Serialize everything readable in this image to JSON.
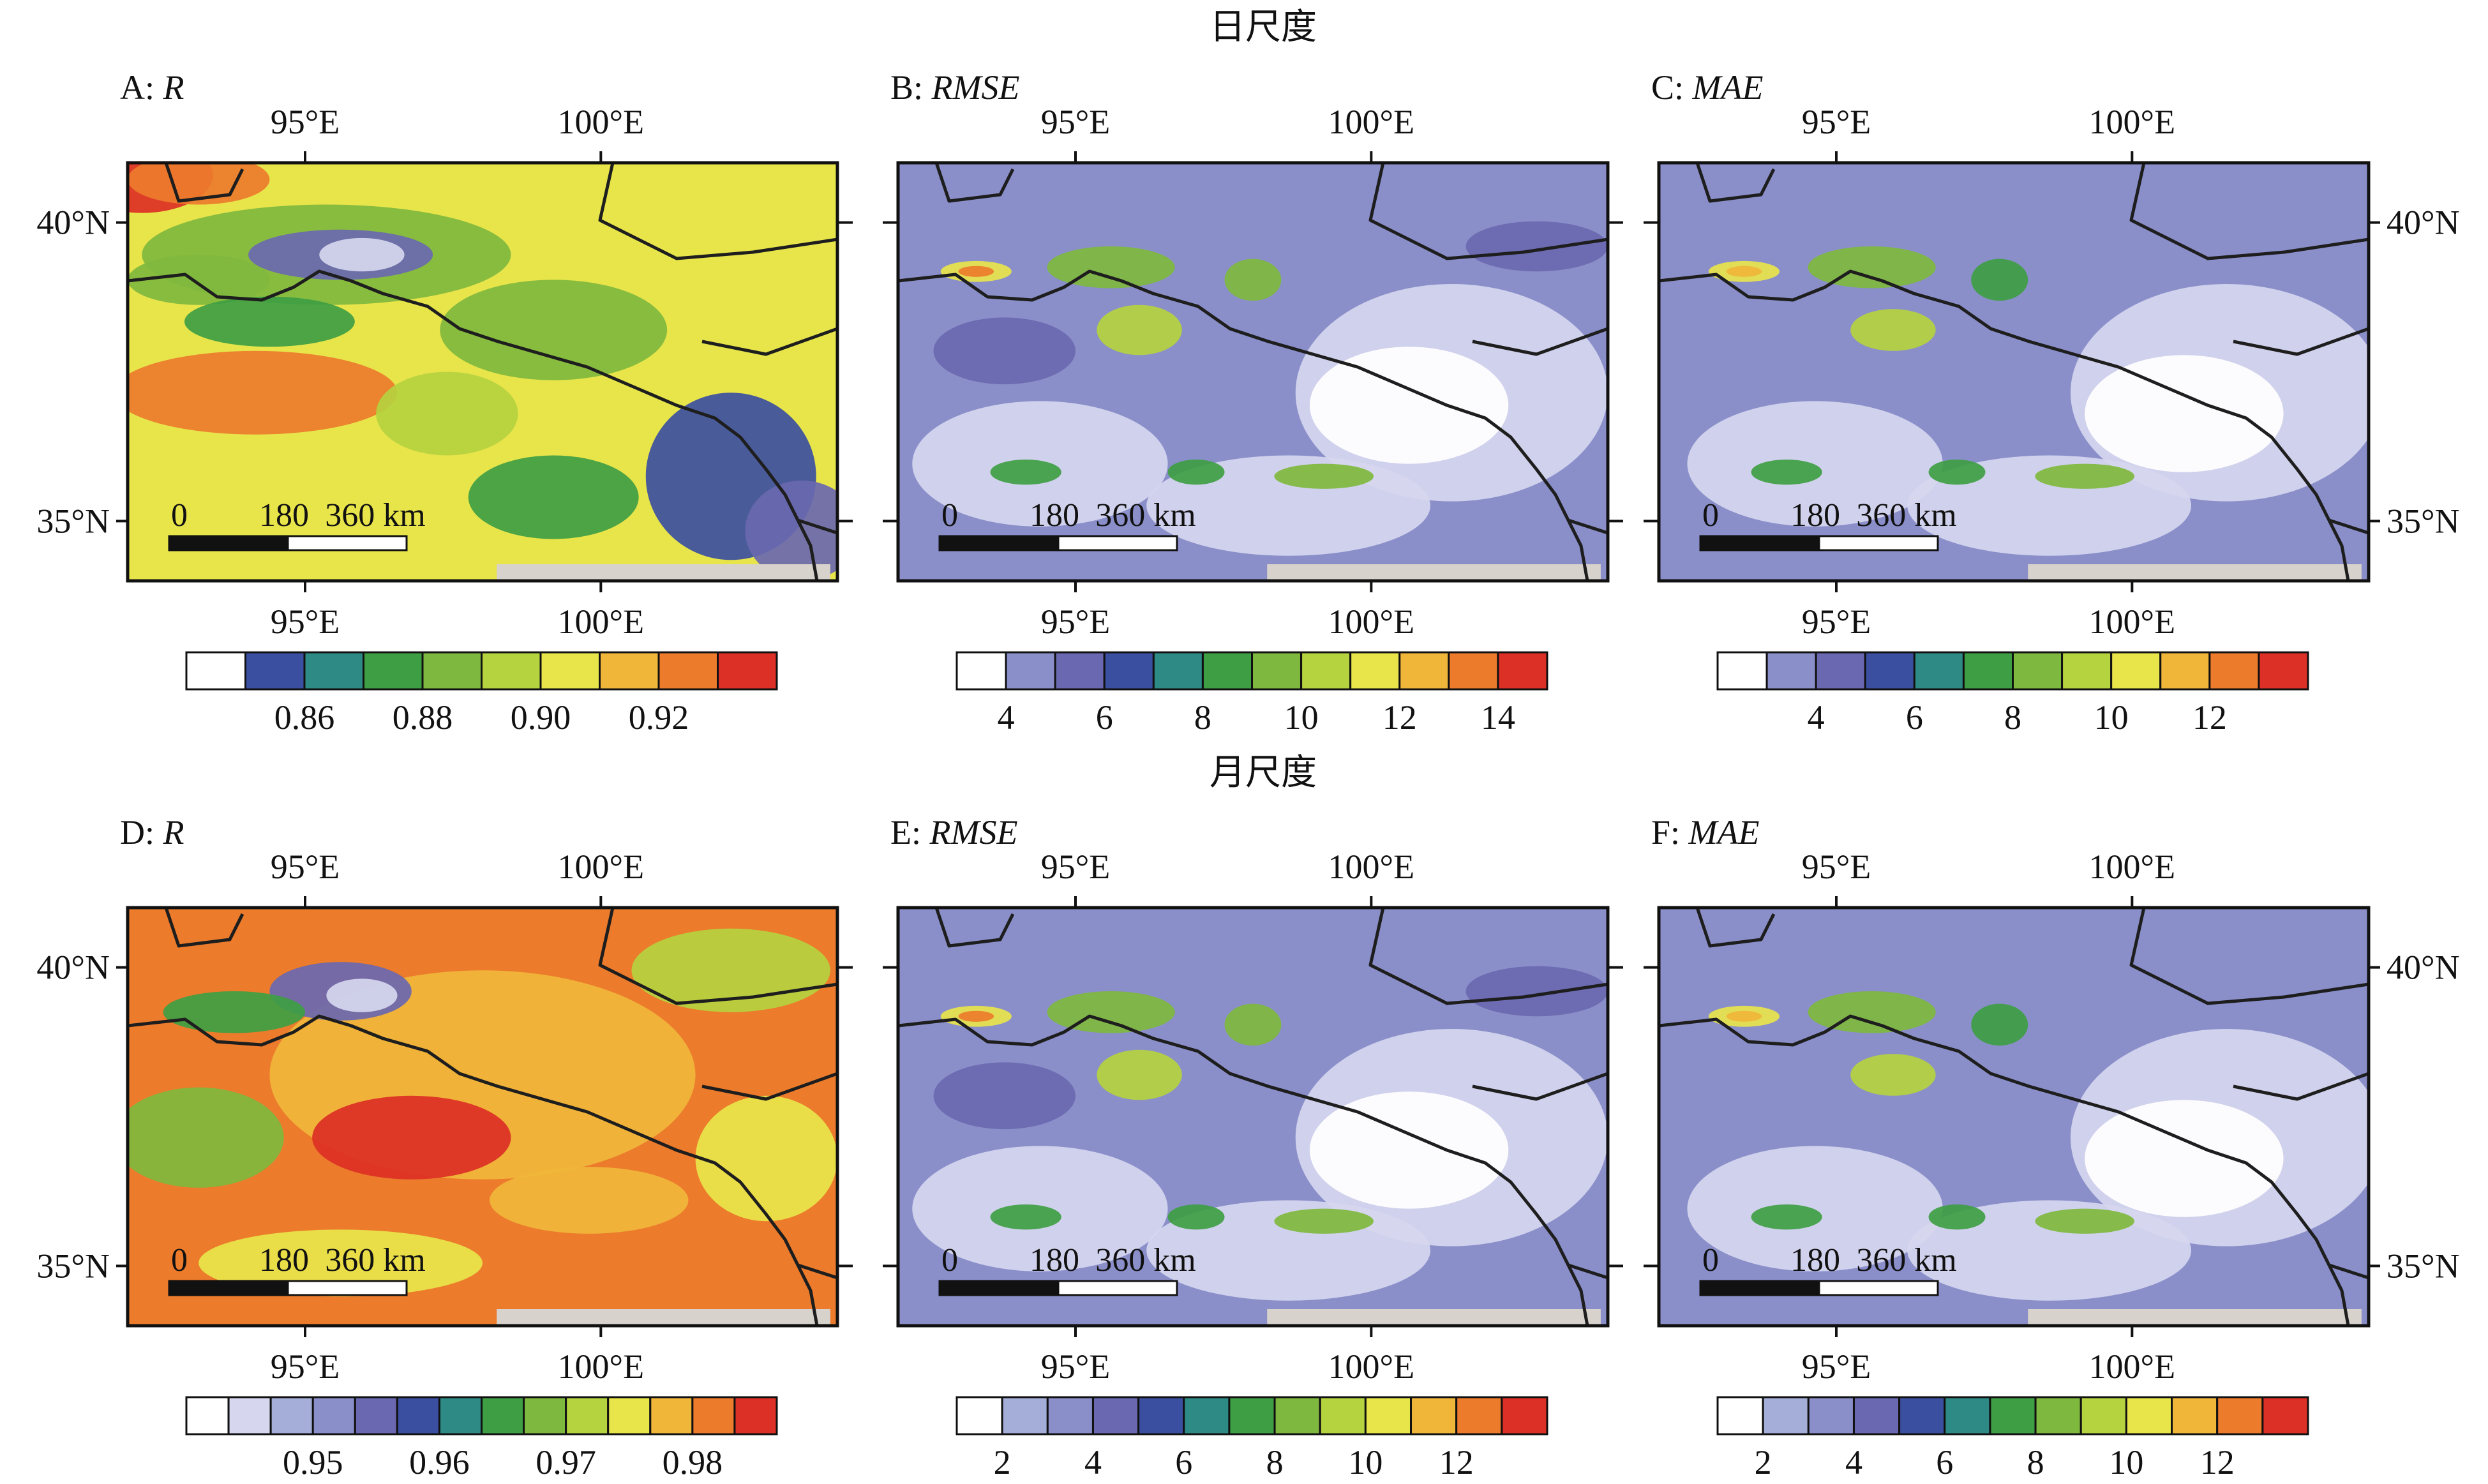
{
  "section_titles": {
    "daily": "日尺度",
    "monthly": "月尺度"
  },
  "tick_labels": {
    "lon": [
      "95°E",
      "100°E"
    ],
    "lat": [
      "40°N",
      "35°N"
    ]
  },
  "scale_bar": {
    "labels": [
      "0",
      "180",
      "360 km"
    ]
  },
  "colors": {
    "palette": [
      "#ffffff",
      "#d6d7ef",
      "#a5aed8",
      "#8a8fc9",
      "#6a68b0",
      "#3b4fa0",
      "#2d8a85",
      "#3e9e43",
      "#7fb83e",
      "#b5d33f",
      "#e8e54b",
      "#f0b63a",
      "#ec7b2c",
      "#dc2f25"
    ],
    "nodata": "#d8d2cc",
    "border": "#1e1e1e"
  },
  "chart_data": [
    {
      "type": "heatmap",
      "panel": "A",
      "scale": "日尺度",
      "metric": "R",
      "label_prefix": "A: ",
      "label_metric": "R",
      "xlim": [
        92.0,
        104.0
      ],
      "ylim": [
        34.0,
        41.0
      ],
      "colorbar": {
        "bins": 10,
        "ticks": [
          {
            "value": "0.86",
            "at": 2
          },
          {
            "value": "0.88",
            "at": 4
          },
          {
            "value": "0.90",
            "at": 6
          },
          {
            "value": "0.92",
            "at": 8
          }
        ]
      }
    },
    {
      "type": "heatmap",
      "panel": "B",
      "scale": "日尺度",
      "metric": "RMSE",
      "label_prefix": "B: ",
      "label_metric": "RMSE",
      "xlim": [
        92.0,
        104.0
      ],
      "ylim": [
        34.0,
        41.0
      ],
      "colorbar": {
        "bins": 12,
        "ticks": [
          {
            "value": "4",
            "at": 1
          },
          {
            "value": "6",
            "at": 3
          },
          {
            "value": "8",
            "at": 5
          },
          {
            "value": "10",
            "at": 7
          },
          {
            "value": "12",
            "at": 9
          },
          {
            "value": "14",
            "at": 11
          }
        ]
      }
    },
    {
      "type": "heatmap",
      "panel": "C",
      "scale": "日尺度",
      "metric": "MAE",
      "label_prefix": "C: ",
      "label_metric": "MAE",
      "xlim": [
        92.0,
        104.0
      ],
      "ylim": [
        34.0,
        41.0
      ],
      "colorbar": {
        "bins": 12,
        "ticks": [
          {
            "value": "4",
            "at": 2
          },
          {
            "value": "6",
            "at": 4
          },
          {
            "value": "8",
            "at": 6
          },
          {
            "value": "10",
            "at": 8
          },
          {
            "value": "12",
            "at": 10
          }
        ]
      }
    },
    {
      "type": "heatmap",
      "panel": "D",
      "scale": "月尺度",
      "metric": "R",
      "label_prefix": "D: ",
      "label_metric": "R",
      "xlim": [
        92.0,
        104.0
      ],
      "ylim": [
        34.0,
        41.0
      ],
      "colorbar": {
        "bins": 14,
        "ticks": [
          {
            "value": "0.95",
            "at": 3
          },
          {
            "value": "0.96",
            "at": 6
          },
          {
            "value": "0.97",
            "at": 9
          },
          {
            "value": "0.98",
            "at": 12
          }
        ]
      }
    },
    {
      "type": "heatmap",
      "panel": "E",
      "scale": "月尺度",
      "metric": "RMSE",
      "label_prefix": "E: ",
      "label_metric": "RMSE",
      "xlim": [
        92.0,
        104.0
      ],
      "ylim": [
        34.0,
        41.0
      ],
      "colorbar": {
        "bins": 13,
        "ticks": [
          {
            "value": "2",
            "at": 1
          },
          {
            "value": "4",
            "at": 3
          },
          {
            "value": "6",
            "at": 5
          },
          {
            "value": "8",
            "at": 7
          },
          {
            "value": "10",
            "at": 9
          },
          {
            "value": "12",
            "at": 11
          }
        ]
      }
    },
    {
      "type": "heatmap",
      "panel": "F",
      "scale": "月尺度",
      "metric": "MAE",
      "label_prefix": "F: ",
      "label_metric": "MAE",
      "xlim": [
        92.0,
        104.0
      ],
      "ylim": [
        34.0,
        41.0
      ],
      "colorbar": {
        "bins": 13,
        "ticks": [
          {
            "value": "2",
            "at": 1
          },
          {
            "value": "4",
            "at": 3
          },
          {
            "value": "6",
            "at": 5
          },
          {
            "value": "8",
            "at": 7
          },
          {
            "value": "10",
            "at": 9
          },
          {
            "value": "12",
            "at": 11
          }
        ]
      }
    }
  ]
}
